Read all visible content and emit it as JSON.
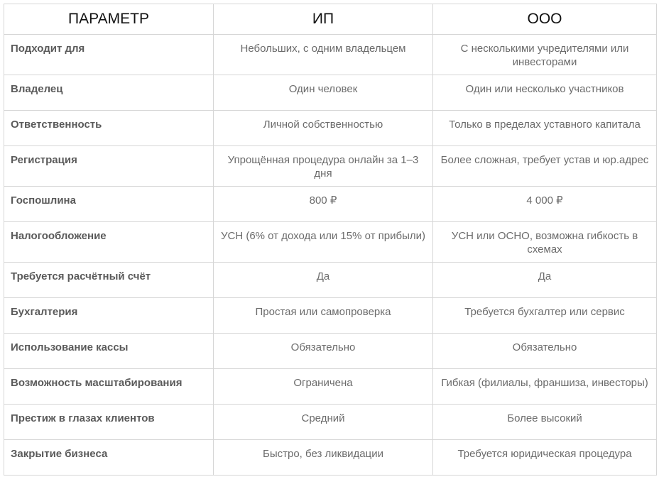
{
  "header": {
    "param": "ПАРАМЕТР",
    "ip": "ИП",
    "ooo": "ООО"
  },
  "rows": [
    {
      "param": "Подходит для",
      "ip": "Небольших, с одним владельцем",
      "ooo": "С несколькими учредителями или инвесторами"
    },
    {
      "param": "Владелец",
      "ip": "Один человек",
      "ooo": "Один или несколько участников"
    },
    {
      "param": "Ответственность",
      "ip": "Личной собственностью",
      "ooo": "Только в пределах уставного капитала"
    },
    {
      "param": "Регистрация",
      "ip": "Упрощённая процедура онлайн за 1–3 дня",
      "ooo": "Более сложная, требует устав и юр.адрес"
    },
    {
      "param": "Госпошлина",
      "ip": "800 ₽",
      "ooo": "4 000 ₽"
    },
    {
      "param": "Налогообложение",
      "ip": "УСН (6% от дохода или 15% от прибыли)",
      "ooo": "УСН или ОСНО, возможна гибкость в схемах"
    },
    {
      "param": "Требуется расчётный счёт",
      "ip": "Да",
      "ooo": "Да"
    },
    {
      "param": "Бухгалтерия",
      "ip": "Простая или самопроверка",
      "ooo": "Требуется бухгалтер или сервис"
    },
    {
      "param": "Использование кассы",
      "ip": "Обязательно",
      "ooo": "Обязательно"
    },
    {
      "param": "Возможность масштабирования",
      "ip": "Ограничена",
      "ooo": "Гибкая (филиалы, франшиза, инвесторы)"
    },
    {
      "param": "Престиж в глазах клиентов",
      "ip": "Средний",
      "ooo": "Более высокий"
    },
    {
      "param": "Закрытие бизнеса",
      "ip": "Быстро, без ликвидации",
      "ooo": "Требуется юридическая процедура"
    }
  ]
}
